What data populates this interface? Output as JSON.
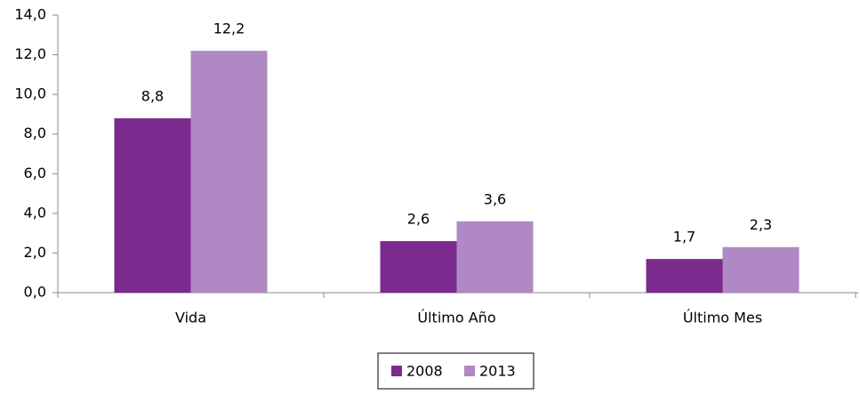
{
  "chart_data": {
    "type": "bar",
    "categories": [
      "Vida",
      "Último Año",
      "Último Mes"
    ],
    "series": [
      {
        "name": "2008",
        "color": "#7b2a8e",
        "values": [
          8.8,
          2.6,
          1.7
        ],
        "value_labels": [
          "8,8",
          "2,6",
          "1,7"
        ]
      },
      {
        "name": "2013",
        "color": "#b088c3",
        "values": [
          12.2,
          3.6,
          2.3
        ],
        "value_labels": [
          "12,2",
          "3,6",
          "2,3"
        ]
      }
    ],
    "ylim": [
      0,
      14
    ],
    "yticks": [
      {
        "value": 0,
        "label": "0,0"
      },
      {
        "value": 2,
        "label": "2,0"
      },
      {
        "value": 4,
        "label": "4,0"
      },
      {
        "value": 6,
        "label": "6,0"
      },
      {
        "value": 8,
        "label": "8,0"
      },
      {
        "value": 10,
        "label": "10,0"
      },
      {
        "value": 12,
        "label": "12,0"
      },
      {
        "value": 14,
        "label": "14,0"
      }
    ],
    "legend": "bottom"
  }
}
